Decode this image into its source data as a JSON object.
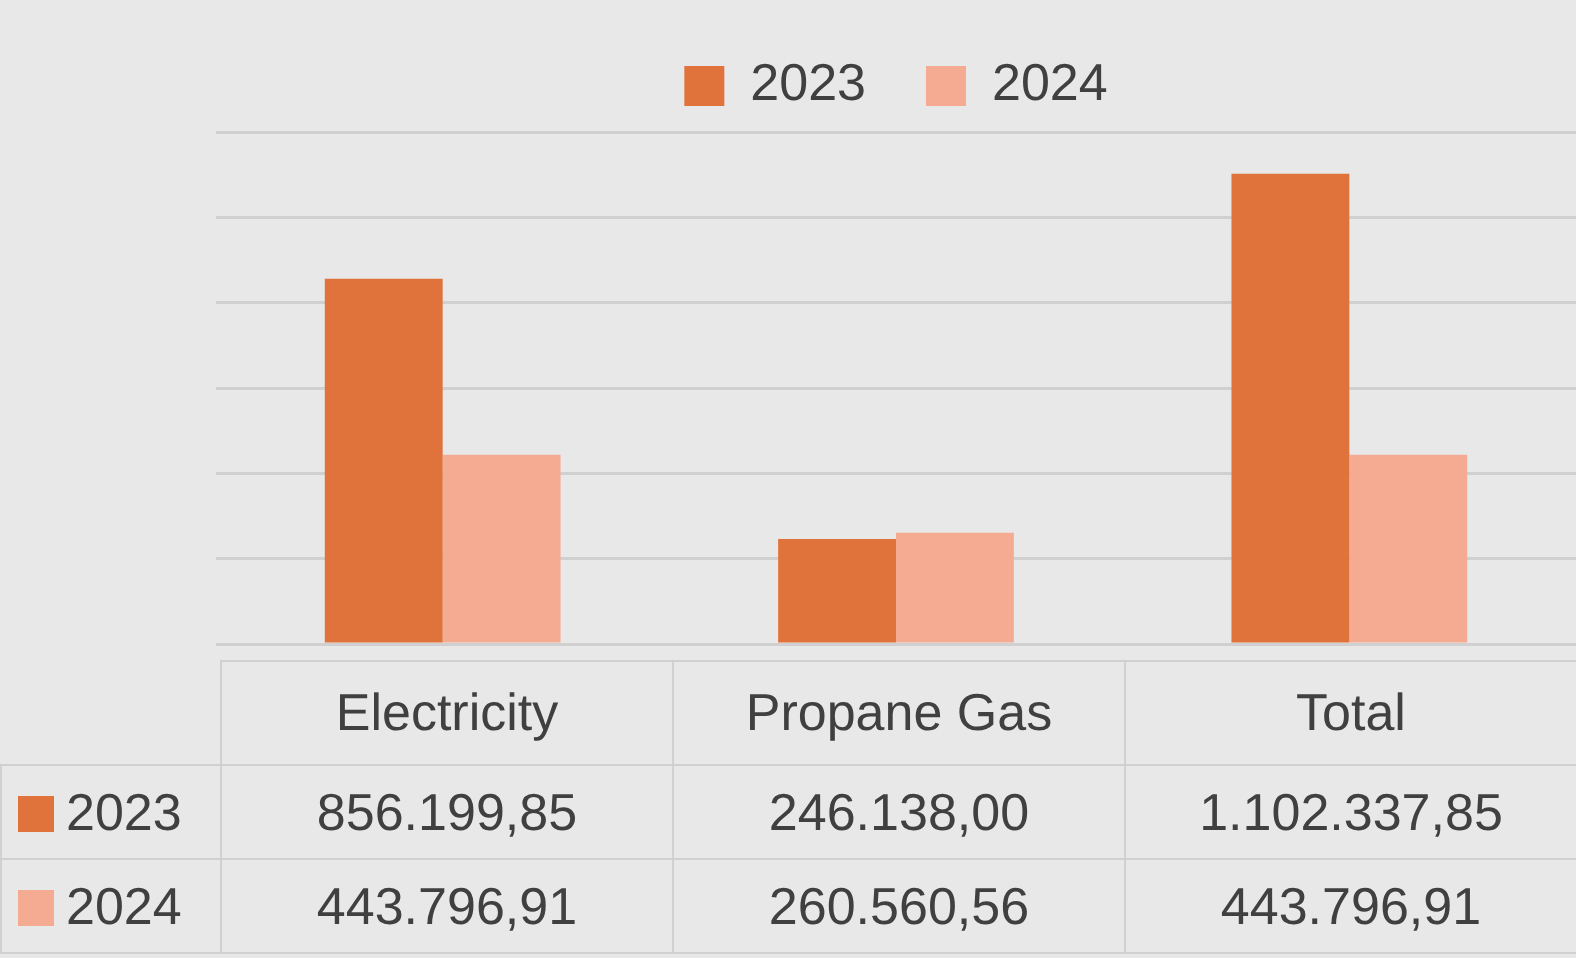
{
  "chart_data": {
    "type": "bar",
    "categories": [
      "Electricity",
      "Propane Gas",
      "Total"
    ],
    "series": [
      {
        "name": "2023",
        "color": "#e0733c",
        "values": [
          856199.85,
          246138.0,
          1102337.85
        ],
        "value_labels": [
          "856.199,85",
          "246.138,00",
          "1.102.337,85"
        ]
      },
      {
        "name": "2024",
        "color": "#f5ab92",
        "values": [
          443796.91,
          260560.56,
          443796.91
        ],
        "value_labels": [
          "443.796,91",
          "260.560,56",
          "443.796,91"
        ]
      }
    ],
    "grid": "y",
    "legend": "top",
    "tick_labels": "x",
    "data_labels": true
  }
}
